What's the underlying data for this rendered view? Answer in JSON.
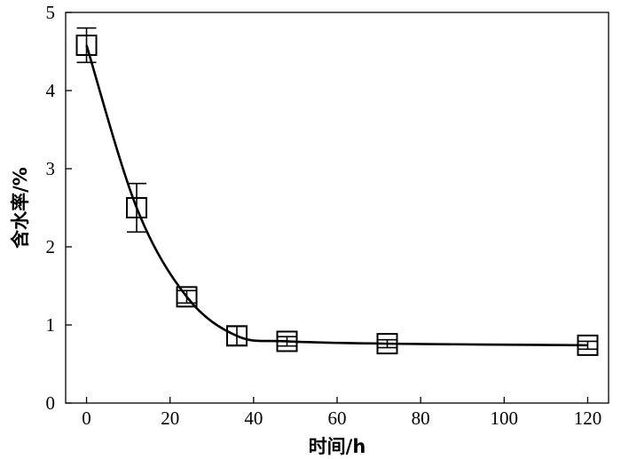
{
  "chart_data": {
    "type": "scatter",
    "xlabel": "时间/h",
    "ylabel": "含水率/%",
    "xlim": [
      -5,
      125
    ],
    "ylim": [
      0,
      5
    ],
    "x_ticks": [
      0,
      20,
      40,
      60,
      80,
      100,
      120
    ],
    "y_ticks": [
      0,
      1,
      2,
      3,
      4,
      5
    ],
    "grid": false,
    "legend": "none",
    "marker": "open-square",
    "fitted_curve": true,
    "series": [
      {
        "x": [
          0,
          12,
          24,
          36,
          48,
          72,
          120
        ],
        "y": [
          4.58,
          2.5,
          1.36,
          0.86,
          0.79,
          0.76,
          0.74
        ],
        "error": [
          0.22,
          0.31,
          0.08,
          0.12,
          0.06,
          0.05,
          0.05
        ]
      }
    ]
  }
}
